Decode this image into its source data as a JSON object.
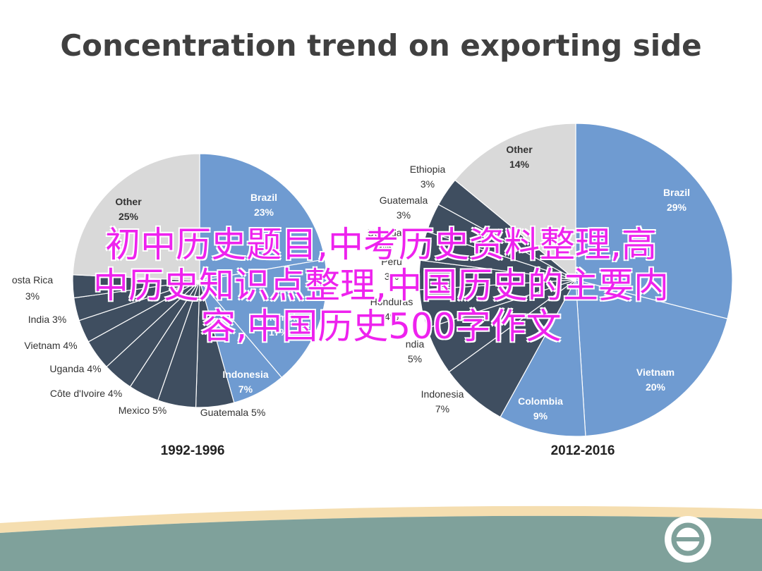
{
  "title": "Concentration trend on exporting side",
  "overlay_text": {
    "line1": "初中历史题目,中考历史资料整理,高",
    "line2": "中历史知识点整理,中国历史的主要内",
    "line3": "容,中国历史500字作文"
  },
  "colors": {
    "blue": "#6f9bd1",
    "gray": "#d9d9d9",
    "dark": "#3f4e60",
    "footer_teal": "#7fa19b",
    "footer_stripe": "#f5deb0"
  },
  "chart_data": [
    {
      "type": "pie",
      "title": "1992-1996",
      "slices": [
        {
          "label": "Brazil",
          "value": 23,
          "display": "Brazil 23%"
        },
        {
          "label": "Colombia",
          "value": 17,
          "display": "Colombia 17%"
        },
        {
          "label": "Indonesia",
          "value": 7,
          "display": "Indonesia 7%"
        },
        {
          "label": "Guatemala",
          "value": 5,
          "display": "Guatemala 5%"
        },
        {
          "label": "Mexico",
          "value": 5,
          "display": "Mexico 5%"
        },
        {
          "label": "Côte d'Ivoire",
          "value": 4,
          "display": "Côte d'Ivoire 4%"
        },
        {
          "label": "Uganda",
          "value": 4,
          "display": "Uganda 4%"
        },
        {
          "label": "Vietnam",
          "value": 4,
          "display": "Vietnam 4%"
        },
        {
          "label": "India",
          "value": 3,
          "display": "India 3%"
        },
        {
          "label": "",
          "value": 3,
          "display": "3%"
        },
        {
          "label": "Costa Rica",
          "value": 3,
          "display": "osta Rica"
        },
        {
          "label": "Other",
          "value": 25,
          "display": "Other 25%"
        }
      ]
    },
    {
      "type": "pie",
      "title": "2012-2016",
      "slices": [
        {
          "label": "Brazil",
          "value": 29,
          "display": "Brazil 29%"
        },
        {
          "label": "Vietnam",
          "value": 20,
          "display": "Vietnam 20%"
        },
        {
          "label": "Colombia",
          "value": 9,
          "display": "Colombia 9%"
        },
        {
          "label": "Indonesia",
          "value": 7,
          "display": "Indonesia 7%"
        },
        {
          "label": "India",
          "value": 5,
          "display": "ndia 5%"
        },
        {
          "label": "Honduras",
          "value": 4,
          "display": "Honduras 4%"
        },
        {
          "label": "Peru",
          "value": 3,
          "display": "Peru 3%"
        },
        {
          "label": "Uganda",
          "value": 3,
          "display": "Uganda 3%"
        },
        {
          "label": "Guatemala",
          "value": 3,
          "display": "Guatemala 3%"
        },
        {
          "label": "Ethiopia",
          "value": 3,
          "display": "Ethiopia 3%"
        },
        {
          "label": "Other",
          "value": 14,
          "display": "Other 14%"
        }
      ]
    }
  ]
}
